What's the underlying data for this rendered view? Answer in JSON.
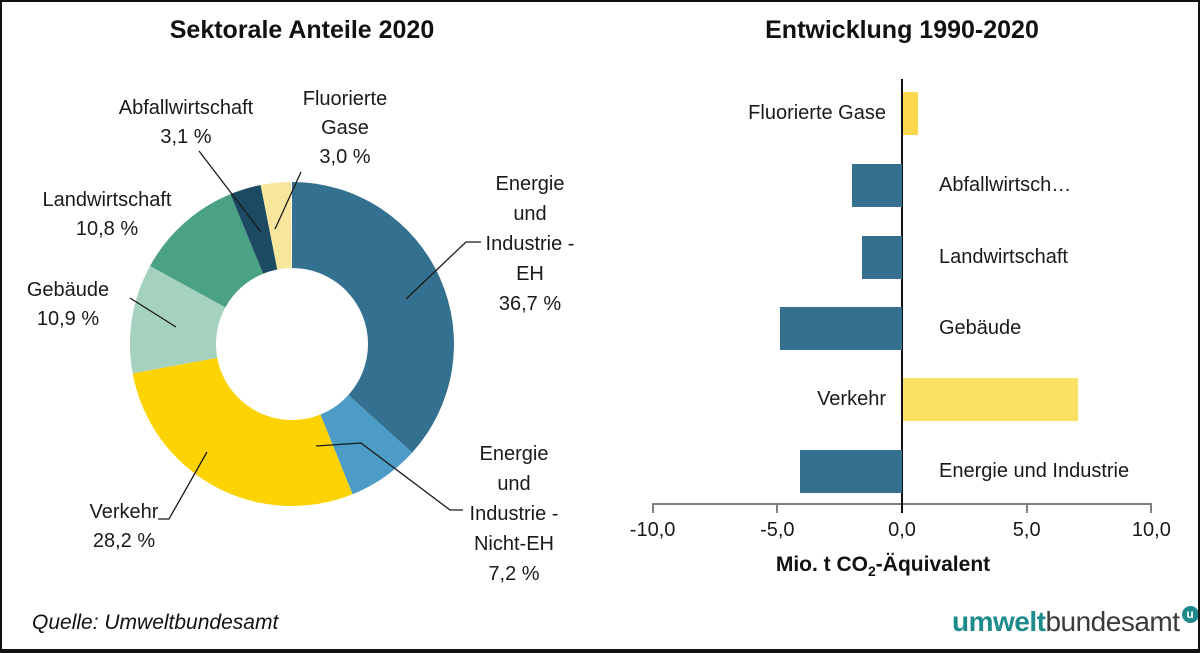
{
  "page": {
    "source": "Quelle: Umweltbundesamt",
    "logo": {
      "part1": "umwelt",
      "part2": "bundesamt",
      "badge_letter": "u",
      "teal": "#1f8a8b",
      "gray": "#3b3b3b"
    }
  },
  "chart_data": [
    {
      "type": "pie",
      "subtype": "donut",
      "title": "Sektorale Anteile 2020",
      "unit": "%",
      "start_angle": "12-o'clock, clockwise",
      "slices": [
        {
          "label": "Energie und Industrie - EH",
          "value": 36.7,
          "color": "#34708f",
          "display_lines": [
            "Energie",
            "und",
            "Industrie -",
            "EH",
            "36,7 %"
          ]
        },
        {
          "label": "Energie und Industrie - Nicht-EH",
          "value": 7.2,
          "color": "#4d9cc7",
          "display_lines": [
            "Energie",
            "und",
            "Industrie -",
            "Nicht-EH",
            "7,2 %"
          ]
        },
        {
          "label": "Verkehr",
          "value": 28.2,
          "color": "#fdd303",
          "display_lines": [
            "Verkehr",
            "28,2 %"
          ]
        },
        {
          "label": "Gebäude",
          "value": 10.9,
          "color": "#a5d1bf",
          "display_lines": [
            "Gebäude",
            "10,9 %"
          ]
        },
        {
          "label": "Landwirtschaft",
          "value": 10.8,
          "color": "#4ba184",
          "display_lines": [
            "Landwirtschaft",
            "10,8 %"
          ]
        },
        {
          "label": "Abfallwirtschaft",
          "value": 3.1,
          "color": "#1d4a63",
          "display_lines": [
            "Abfallwirtschaft",
            "3,1 %"
          ]
        },
        {
          "label": "Fluorierte Gase",
          "value": 3.0,
          "color": "#f7e69b",
          "display_lines": [
            "Fluorierte",
            "Gase",
            "3,0 %"
          ]
        }
      ]
    },
    {
      "type": "bar",
      "orientation": "horizontal",
      "title": "Entwicklung 1990-2020",
      "xlabel": "Mio. t CO₂-Äquivalent",
      "xlabel_parts": {
        "pre": "Mio. t CO",
        "sub": "2",
        "post": "-Äquivalent"
      },
      "xlim": [
        -10,
        10
      ],
      "xticks": [
        -10,
        -5,
        0,
        5,
        10
      ],
      "xtick_labels": [
        "-10,0",
        "-5,0",
        "0,0",
        "5,0",
        "10,0"
      ],
      "categories": [
        "Fluorierte Gase",
        "Abfallwirtsch…",
        "Landwirtschaft",
        "Gebäude",
        "Verkehr",
        "Energie und Industrie"
      ],
      "values": [
        0.6,
        -2.0,
        -1.6,
        -4.9,
        7.0,
        -4.1
      ],
      "bar_colors": [
        "#fbd84e",
        "#35718e",
        "#35718e",
        "#35718e",
        "#fbe163",
        "#35718e"
      ],
      "grid": false,
      "legend": false
    }
  ]
}
